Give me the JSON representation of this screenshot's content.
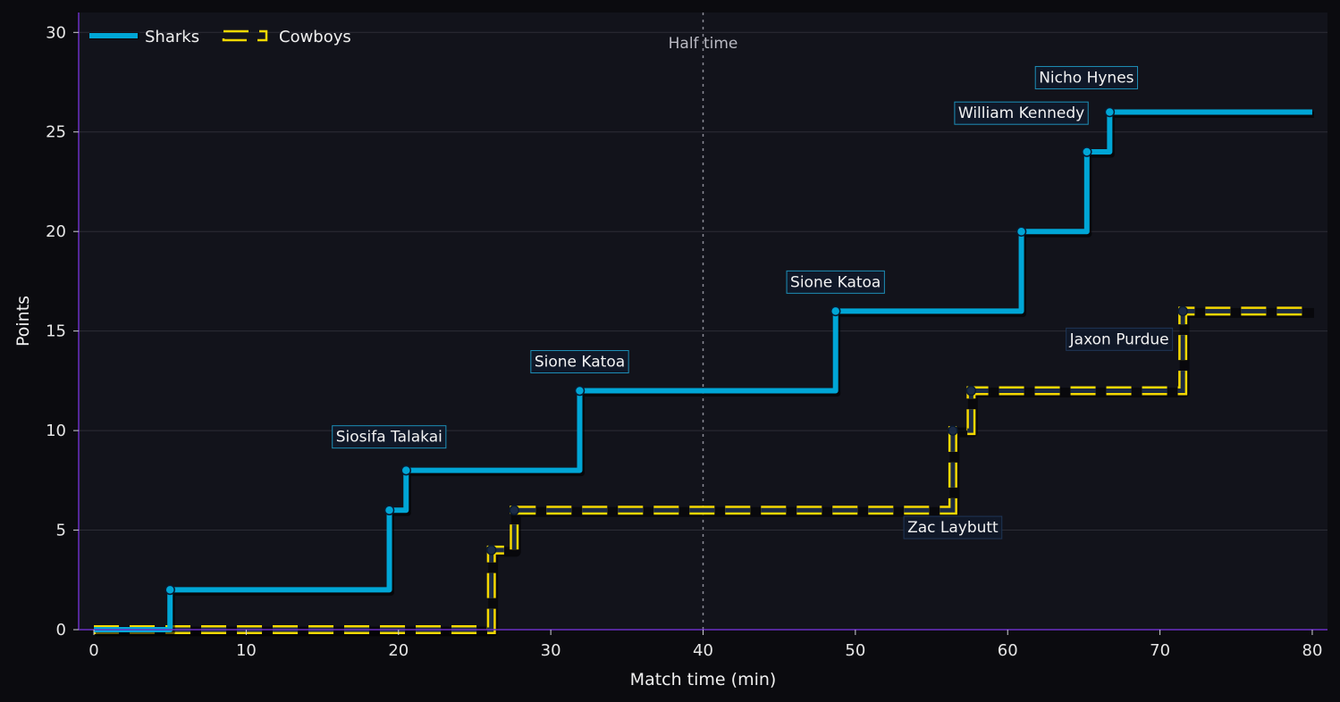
{
  "chart_data": {
    "type": "line",
    "step": "post",
    "xlabel": "Match time (min)",
    "ylabel": "Points",
    "xlim": [
      -1,
      81
    ],
    "ylim": [
      0,
      31
    ],
    "xticks": [
      0,
      10,
      20,
      30,
      40,
      50,
      60,
      70,
      80
    ],
    "yticks": [
      0,
      5,
      10,
      15,
      20,
      25,
      30
    ],
    "grid": "horizontal",
    "legend": "top-left",
    "half_time": {
      "x": 40,
      "label": "Half time"
    },
    "series": [
      {
        "name": "Sharks",
        "style": "solid",
        "color": "#00a6d6",
        "x": [
          0,
          5,
          19.4,
          20.5,
          31.9,
          48.7,
          60.9,
          65.2,
          66.7,
          80
        ],
        "y": [
          0,
          2,
          6,
          8,
          12,
          16,
          20,
          24,
          26,
          26
        ]
      },
      {
        "name": "Cowboys",
        "style": "dashed",
        "color": "#f5d800",
        "x": [
          0,
          26.1,
          27.6,
          56.4,
          57.6,
          71.5,
          80
        ],
        "y": [
          0,
          4,
          6,
          10,
          12,
          16,
          16
        ]
      }
    ],
    "annotations": [
      {
        "text": "Siosifa Talakai",
        "x": 20.5,
        "y": 8,
        "series": "Sharks"
      },
      {
        "text": "Sione Katoa",
        "x": 31.9,
        "y": 12,
        "series": "Sharks"
      },
      {
        "text": "Sione Katoa",
        "x": 48.7,
        "y": 16,
        "series": "Sharks"
      },
      {
        "text": "William Kennedy",
        "x": 60.9,
        "y": 20,
        "series": "Sharks"
      },
      {
        "text": "Nicho Hynes",
        "x": 66.7,
        "y": 26,
        "series": "Sharks"
      },
      {
        "text": "Zac Laybutt",
        "x": 56.4,
        "y": 10,
        "series": "Cowboys"
      },
      {
        "text": "Jaxon Purdue",
        "x": 71.5,
        "y": 16,
        "series": "Cowboys"
      }
    ]
  },
  "colors": {
    "background": "#0b0b0f",
    "plot_background": "#12131b",
    "grid": "#2c2d36",
    "axis": "#6a2fc4",
    "annotation_border_sharks": "#1d8fb8",
    "annotation_border_cowboys": "#1f3556",
    "annotation_fill": "#101a2a"
  }
}
